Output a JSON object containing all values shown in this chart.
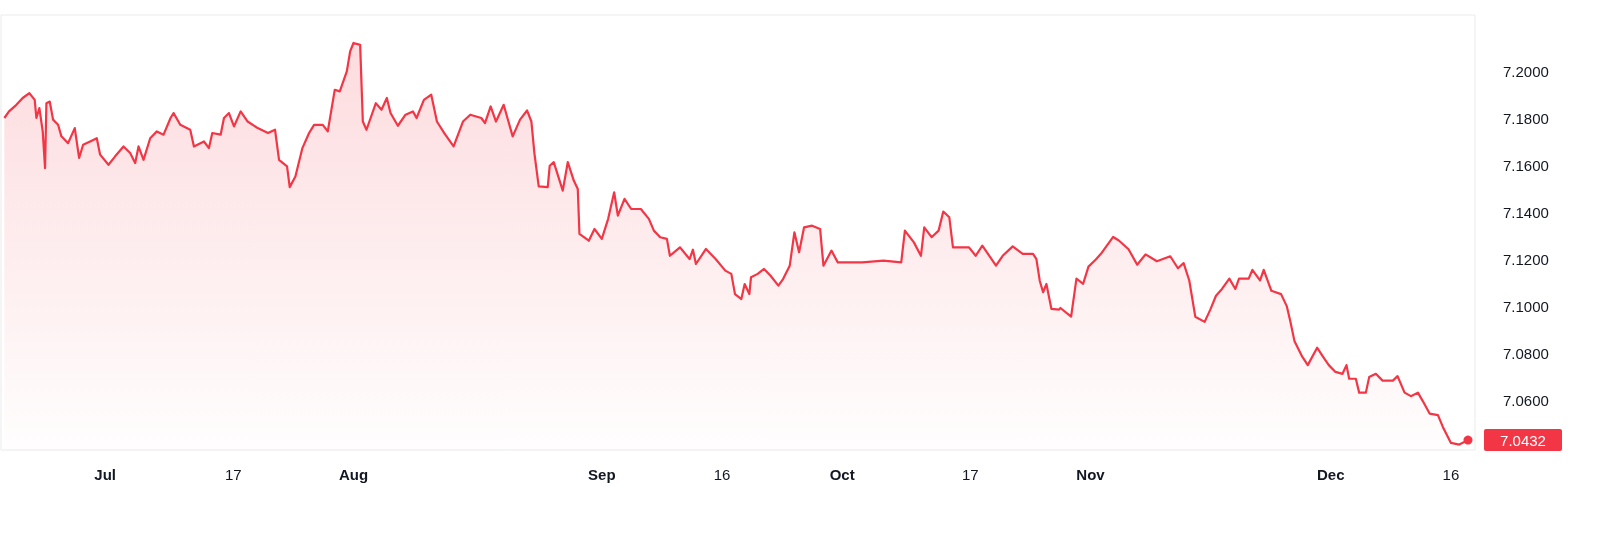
{
  "chart_data": {
    "type": "area",
    "color": "#f23645",
    "grid": false,
    "marker": "none",
    "line_style": "solid",
    "xlim": [
      "--06-18",
      "--12-19"
    ],
    "xticks": [
      {
        "value": "--07-01",
        "label": "Jul"
      },
      {
        "value": "--07-17",
        "label": "17"
      },
      {
        "value": "--08-01",
        "label": "Aug"
      },
      {
        "value": "--09-01",
        "label": "Sep"
      },
      {
        "value": "--09-16",
        "label": "16"
      },
      {
        "value": "--10-01",
        "label": "Oct"
      },
      {
        "value": "--10-17",
        "label": "17"
      },
      {
        "value": "--11-01",
        "label": "Nov"
      },
      {
        "value": "--12-01",
        "label": "Dec"
      },
      {
        "value": "--12-16",
        "label": "16"
      }
    ],
    "ylim": [
      7.039,
      7.224
    ],
    "yticks": [
      {
        "value": 7.06,
        "label": "7.0600"
      },
      {
        "value": 7.08,
        "label": "7.0800"
      },
      {
        "value": 7.1,
        "label": "7.1000"
      },
      {
        "value": 7.12,
        "label": "7.1200"
      },
      {
        "value": 7.14,
        "label": "7.1400"
      },
      {
        "value": 7.16,
        "label": "7.1600"
      },
      {
        "value": 7.18,
        "label": "7.1800"
      },
      {
        "value": 7.2,
        "label": "7.2000"
      }
    ],
    "annotations": [
      {
        "text": "7.0432",
        "x": "--12-18T03:00",
        "y": 7.0432
      }
    ],
    "x": [
      "--06-18T10:00",
      "--06-19T00:00",
      "--06-19T22:00",
      "--06-20T17:00",
      "--06-21T13:00",
      "--06-22T05:00",
      "--06-22T10:00",
      "--06-22T19:00",
      "--06-23T05:00",
      "--06-23T12:00",
      "--06-23T16:00",
      "--06-24T02:00",
      "--06-24T12:00",
      "--06-25T03:00",
      "--06-25T13:00",
      "--06-26T09:00",
      "--06-27T05:00",
      "--06-27T18:00",
      "--06-28T06:00",
      "--06-29T03:00",
      "--06-29T23:00",
      "--06-30T09:00",
      "--07-01T10:00",
      "--07-02T06:00",
      "--07-03T07:00",
      "--07-04T03:00",
      "--07-04T18:00",
      "--07-05T04:00",
      "--07-05T19:00",
      "--07-06T15:00",
      "--07-07T11:00",
      "--07-08T07:00",
      "--07-09T04:00",
      "--07-09T13:00",
      "--07-10T09:00",
      "--07-11T15:00",
      "--07-12T02:00",
      "--07-13T08:00",
      "--07-13T23:00",
      "--07-14T09:00",
      "--07-15T10:00",
      "--07-15T20:00",
      "--07-16T11:00",
      "--07-17T02:00",
      "--07-17T22:00",
      "--07-18T19:00",
      "--07-20T01:00",
      "--07-21T08:00",
      "--07-22T05:00",
      "--07-22T17:00",
      "--07-23T17:00",
      "--07-24T01:00",
      "--07-24T18:00",
      "--07-25T15:00",
      "--07-26T11:00",
      "--07-27T02:00",
      "--07-28T04:00",
      "--07-28T19:00",
      "--07-29T16:00",
      "--07-30T07:00",
      "--07-31T04:00",
      "--07-31T14:00",
      "--08-01T00:00",
      "--08-01T20:00",
      "--08-02T04:00",
      "--08-02T15:00",
      "--08-03T19:00",
      "--08-04T12:00",
      "--08-05T04:00",
      "--08-05T15:00",
      "--08-06T13:00",
      "--08-07T12:00",
      "--08-08T10:00",
      "--08-08T21:00",
      "--08-09T19:00",
      "--08-10T17:00",
      "--08-11T10:00",
      "--08-12T08:00",
      "--08-13T12:00",
      "--08-14T16:00",
      "--08-15T14:00",
      "--08-16T23:00",
      "--08-17T10:00",
      "--08-18T03:00",
      "--08-18T19:00",
      "--08-19T18:00",
      "--08-20T21:00",
      "--08-21T19:00",
      "--08-22T16:00",
      "--08-23T05:00",
      "--08-23T14:00",
      "--08-24T03:00",
      "--08-25T06:00",
      "--08-25T12:00",
      "--08-26T00:00",
      "--08-27T03:00",
      "--08-27T18:00",
      "--08-28T12:00",
      "--08-29T00:00",
      "--08-29T05:00",
      "--08-30T09:00",
      "--08-31T02:00",
      "--09-01T00:00",
      "--09-01T19:00",
      "--09-02T13:00",
      "--09-03T00:00",
      "--09-03T20:00",
      "--09-04T16:00",
      "--09-05T21:00",
      "--09-06T21:00",
      "--09-07T12:00",
      "--09-08T07:00",
      "--09-09T03:00",
      "--09-09T12:00",
      "--09-10T18:00",
      "--09-11T23:00",
      "--09-12T09:00",
      "--09-12T18:00",
      "--09-14T00:00",
      "--09-15T05:00",
      "--09-16T10:00",
      "--09-17T04:00",
      "--09-17T15:00",
      "--09-18T10:00",
      "--09-18T20:00",
      "--09-19T10:00",
      "--09-19T15:00",
      "--09-20T11:00",
      "--09-21T06:00",
      "--09-22T01:00",
      "--09-23T01:00",
      "--09-23T15:00",
      "--09-24T11:00",
      "--09-25T01:00",
      "--09-25T15:00",
      "--09-26T06:00",
      "--09-27T06:00",
      "--09-28T06:00",
      "--09-28T16:00",
      "--09-29T16:00",
      "--09-30T11:00",
      "--10-03T12:00",
      "--10-06T04:00",
      "--10-08T09:00",
      "--10-08T20:00",
      "--10-09T23:00",
      "--10-10T20:00",
      "--10-11T06:00",
      "--10-12T04:00",
      "--10-13T01:00",
      "--10-13T15:00",
      "--10-14T09:00",
      "--10-14T20:00",
      "--10-16T20:00",
      "--10-17T16:00",
      "--10-18T12:00",
      "--10-20T05:00",
      "--10-21T01:00",
      "--10-22T07:00",
      "--10-23T13:00",
      "--10-24T20:00",
      "--10-25T06:00",
      "--10-25T16:00",
      "--10-26T02:00",
      "--10-26T12:00",
      "--10-27T03:00",
      "--10-28T02:00",
      "--10-28T06:00",
      "--10-29T14:00",
      "--10-30T06:00",
      "--10-31T02:00",
      "--10-31T18:00",
      "--11-01T16:00",
      "--11-02T10:00",
      "--11-03T20:00",
      "--11-04T13:00",
      "--11-05T18:00",
      "--11-06T20:00",
      "--11-07T21:00",
      "--11-09T07:00",
      "--11-10T23:00",
      "--11-11T22:00",
      "--11-12T15:00",
      "--11-13T08:00",
      "--11-14T02:00",
      "--11-15T06:00",
      "--11-15T23:00",
      "--11-16T16:00",
      "--11-17T10:00",
      "--11-18T08:00",
      "--11-19T02:00",
      "--11-19T13:00",
      "--11-20T18:00",
      "--11-21T05:00",
      "--11-22T04:00",
      "--11-22T15:00",
      "--11-23T14:00",
      "--11-24T19:00",
      "--11-25T12:00",
      "--11-25T23:00",
      "--11-26T11:00",
      "--11-27T10:00",
      "--11-28T03:00",
      "--11-29T07:00",
      "--11-30T00:00",
      "--11-30T18:00",
      "--12-01T14:00",
      "--12-02T11:00",
      "--12-02T23:00",
      "--12-03T07:00",
      "--12-04T03:00",
      "--12-04T13:00",
      "--12-05T09:00",
      "--12-05T19:00",
      "--12-06T15:00",
      "--12-07T11:00",
      "--12-08T18:00",
      "--12-09T08:00",
      "--12-10T05:00",
      "--12-11T00:00",
      "--12-11T21:00",
      "--12-12T12:00",
      "--12-13T08:00",
      "--12-14T09:00",
      "--12-15T00:00",
      "--12-16T00:00",
      "--12-17T01:00",
      "--12-18T03:00"
    ],
    "values": [
      7.1802,
      7.183,
      7.1858,
      7.1887,
      7.1908,
      7.1879,
      7.1802,
      7.1844,
      7.1745,
      7.1589,
      7.1865,
      7.1872,
      7.1795,
      7.1773,
      7.1724,
      7.1695,
      7.1759,
      7.1632,
      7.1688,
      7.1702,
      7.1716,
      7.1646,
      7.1603,
      7.1639,
      7.1681,
      7.1653,
      7.161,
      7.1681,
      7.1624,
      7.1716,
      7.1745,
      7.1731,
      7.1802,
      7.1823,
      7.1773,
      7.1752,
      7.1681,
      7.1702,
      7.1674,
      7.1738,
      7.1731,
      7.1802,
      7.1823,
      7.1766,
      7.183,
      7.1787,
      7.1759,
      7.1738,
      7.1752,
      7.1624,
      7.1596,
      7.1508,
      7.1553,
      7.1674,
      7.1738,
      7.1773,
      7.1773,
      7.1745,
      7.1922,
      7.1915,
      7.2,
      7.2085,
      7.2121,
      7.2113,
      7.1787,
      7.1752,
      7.1865,
      7.1837,
      7.1887,
      7.1823,
      7.1769,
      7.1816,
      7.183,
      7.1802,
      7.1879,
      7.1901,
      7.1787,
      7.1738,
      7.1681,
      7.1787,
      7.1816,
      7.1802,
      7.178,
      7.1851,
      7.1787,
      7.1858,
      7.1724,
      7.1795,
      7.1834,
      7.1787,
      7.1653,
      7.1511,
      7.1508,
      7.1599,
      7.1614,
      7.1493,
      7.1614,
      7.1536,
      7.15,
      7.1309,
      7.128,
      7.133,
      7.1288,
      7.1373,
      7.1486,
      7.1387,
      7.1458,
      7.1415,
      7.1415,
      7.1373,
      7.1323,
      7.1295,
      7.1288,
      7.1216,
      7.1252,
      7.1202,
      7.1242,
      7.1181,
      7.1245,
      7.1202,
      7.1153,
      7.1139,
      7.1053,
      7.1032,
      7.1096,
      7.1053,
      7.1125,
      7.1139,
      7.116,
      7.1132,
      7.1089,
      7.1117,
      7.1174,
      7.1316,
      7.1231,
      7.1337,
      7.1344,
      7.133,
      7.1174,
      7.1238,
      7.1188,
      7.1188,
      7.1195,
      7.1188,
      7.1323,
      7.1273,
      7.1216,
      7.1337,
      7.1295,
      7.1323,
      7.1404,
      7.138,
      7.1252,
      7.1252,
      7.1216,
      7.1259,
      7.1174,
      7.1216,
      7.1256,
      7.1224,
      7.1224,
      7.1202,
      7.111,
      7.1061,
      7.1096,
      7.099,
      7.0987,
      7.0994,
      7.0957,
      7.1119,
      7.1097,
      7.117,
      7.12,
      7.1229,
      7.1296,
      7.1281,
      7.1244,
      7.1178,
      7.1222,
      7.1193,
      7.1214,
      7.1163,
      7.1185,
      7.1111,
      7.0957,
      7.0935,
      7.0987,
      7.1046,
      7.1075,
      7.1119,
      7.1075,
      7.1119,
      7.1119,
      7.1156,
      7.1111,
      7.1156,
      7.1067,
      7.1053,
      7.1002,
      7.0935,
      7.0854,
      7.0788,
      7.0751,
      7.0825,
      7.0788,
      7.0751,
      7.0722,
      7.0714,
      7.0751,
      7.0693,
      7.0693,
      7.0634,
      7.0634,
      7.07,
      7.0714,
      7.0685,
      7.0685,
      7.0704,
      7.0634,
      7.0619,
      7.0634,
      7.0597,
      7.0545,
      7.0538,
      7.0487,
      7.042,
      7.0413,
      7.0432
    ]
  }
}
